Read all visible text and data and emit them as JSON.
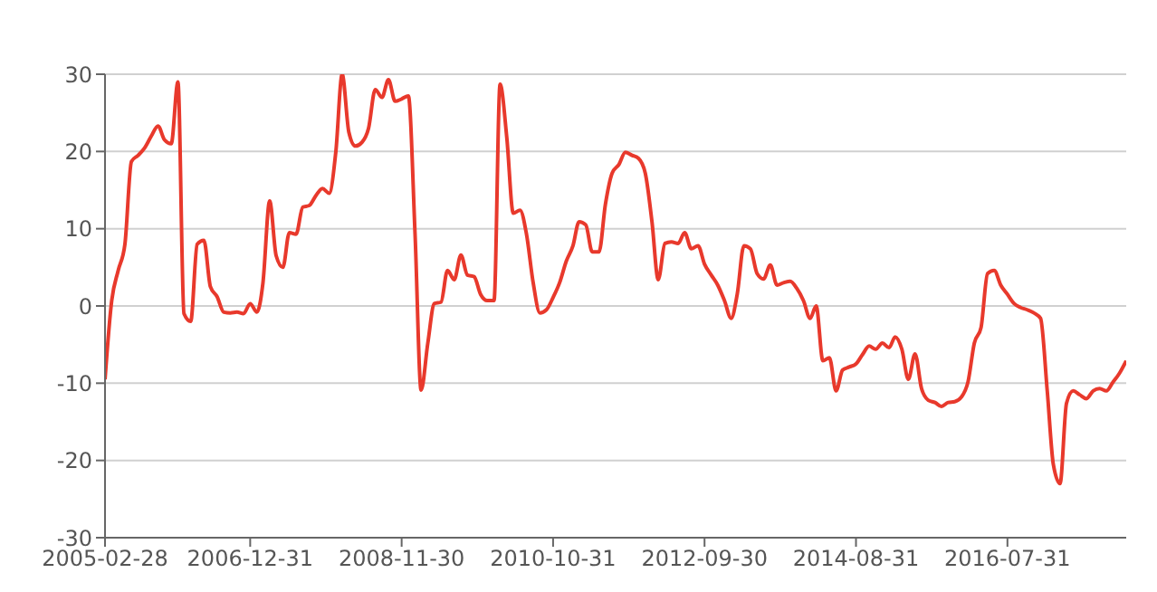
{
  "chart_data": {
    "type": "line",
    "x": [
      "2005-02-28",
      "2005-03-31",
      "2005-04-30",
      "2005-05-31",
      "2005-06-30",
      "2005-07-31",
      "2005-08-31",
      "2005-09-30",
      "2005-10-31",
      "2005-11-30",
      "2005-12-31",
      "2006-01-31",
      "2006-02-28",
      "2006-03-31",
      "2006-04-30",
      "2006-05-31",
      "2006-06-30",
      "2006-07-31",
      "2006-08-31",
      "2006-09-30",
      "2006-10-31",
      "2006-11-30",
      "2006-12-31",
      "2007-01-31",
      "2007-02-28",
      "2007-03-31",
      "2007-04-30",
      "2007-05-31",
      "2007-06-30",
      "2007-07-31",
      "2007-08-31",
      "2007-09-30",
      "2007-10-31",
      "2007-11-30",
      "2007-12-31",
      "2008-01-31",
      "2008-02-29",
      "2008-03-31",
      "2008-04-30",
      "2008-05-31",
      "2008-06-30",
      "2008-07-31",
      "2008-08-31",
      "2008-09-30",
      "2008-10-31",
      "2008-11-30",
      "2008-12-31",
      "2009-01-31",
      "2009-02-28",
      "2009-03-31",
      "2009-04-30",
      "2009-05-31",
      "2009-06-30",
      "2009-07-31",
      "2009-08-31",
      "2009-09-30",
      "2009-10-31",
      "2009-11-30",
      "2009-12-31",
      "2010-01-31",
      "2010-02-28",
      "2010-03-31",
      "2010-04-30",
      "2010-05-31",
      "2010-06-30",
      "2010-07-31",
      "2010-08-31",
      "2010-09-30",
      "2010-10-31",
      "2010-11-30",
      "2010-12-31",
      "2011-01-31",
      "2011-02-28",
      "2011-03-31",
      "2011-04-30",
      "2011-05-31",
      "2011-06-30",
      "2011-07-31",
      "2011-08-31",
      "2011-09-30",
      "2011-10-31",
      "2011-11-30",
      "2011-12-31",
      "2012-01-31",
      "2012-02-29",
      "2012-03-31",
      "2012-04-30",
      "2012-05-31",
      "2012-06-30",
      "2012-07-31",
      "2012-08-31",
      "2012-09-30",
      "2012-10-31",
      "2012-11-30",
      "2012-12-31",
      "2013-01-31",
      "2013-02-28",
      "2013-03-31",
      "2013-04-30",
      "2013-05-31",
      "2013-06-30",
      "2013-07-31",
      "2013-08-31",
      "2013-09-30",
      "2013-10-31",
      "2013-11-30",
      "2013-12-31",
      "2014-01-31",
      "2014-02-28",
      "2014-03-31",
      "2014-04-30",
      "2014-05-31",
      "2014-06-30",
      "2014-07-31",
      "2014-08-31",
      "2014-09-30",
      "2014-10-31",
      "2014-11-30",
      "2014-12-31",
      "2015-01-31",
      "2015-02-28",
      "2015-03-31",
      "2015-04-30",
      "2015-05-31",
      "2015-06-30",
      "2015-07-31",
      "2015-08-31",
      "2015-09-30",
      "2015-10-31",
      "2015-11-30",
      "2015-12-31",
      "2016-01-31",
      "2016-02-29",
      "2016-03-31",
      "2016-04-30",
      "2016-05-31",
      "2016-06-30",
      "2016-07-31",
      "2016-08-31",
      "2016-09-30",
      "2016-10-31",
      "2016-11-30",
      "2016-12-31",
      "2017-01-31",
      "2017-02-28",
      "2017-03-31",
      "2017-04-30",
      "2017-05-31",
      "2017-06-30",
      "2017-07-31",
      "2017-08-31",
      "2017-09-30",
      "2017-10-31",
      "2017-11-30",
      "2017-12-31",
      "2018-01-31"
    ],
    "series": [
      {
        "color": "#e8392c",
        "values": [
          -9.5,
          0.7,
          4.6,
          8,
          18.7,
          19.5,
          20.5,
          22,
          23.3,
          21.5,
          21,
          29,
          -1,
          -2,
          8,
          8.5,
          2.5,
          1.2,
          -0.8,
          -0.9,
          -0.8,
          -1,
          0.3,
          -0.8,
          3,
          13.6,
          6.5,
          5,
          9.5,
          9.3,
          12.8,
          13,
          14.3,
          15.2,
          14.6,
          20,
          30,
          22.5,
          20.7,
          21.2,
          23,
          28,
          27,
          29.3,
          26.5,
          26.8,
          27.2,
          9.3,
          -10.9,
          -4.8,
          0.3,
          0.5,
          4.6,
          3.4,
          6.6,
          4,
          3.8,
          1.5,
          0.7,
          0.7,
          28.7,
          21.8,
          12,
          12.4,
          9.3,
          3,
          -0.9,
          -0.5,
          1.1,
          3,
          5.8,
          7.8,
          10.9,
          10.5,
          7,
          7,
          13.2,
          17.2,
          18.3,
          19.9,
          19.5,
          19.1,
          17.2,
          10.9,
          3.4,
          8.1,
          8.3,
          8.1,
          9.5,
          7.4,
          7.8,
          5.4,
          4,
          2.7,
          0.7,
          -1.6,
          1.5,
          7.8,
          7.4,
          4.2,
          3.5,
          5.3,
          2.7,
          3,
          3.2,
          2.3,
          0.7,
          -1.6,
          0,
          -7.1,
          -6.7,
          -11,
          -8.3,
          -7.9,
          -7.5,
          -6.3,
          -5.2,
          -5.6,
          -4.8,
          -5.4,
          -4,
          -5.6,
          -9.5,
          -6.2,
          -10.7,
          -12.2,
          -12.5,
          -13,
          -12.5,
          -12.4,
          -11.8,
          -9.8,
          -4.8,
          -2.8,
          4.2,
          4.6,
          2.7,
          1.5,
          0.3,
          -0.2,
          -0.5,
          -0.9,
          -1.6,
          -11,
          -20.5,
          -23,
          -12.6,
          -11,
          -11.5,
          -12,
          -11,
          -10.7,
          -11,
          -9.9,
          -8.7,
          -7.1
        ]
      }
    ],
    "xlim": [
      "2005-02-28",
      "2018-01-31"
    ],
    "xticks": [
      "2005-02-28",
      "2006-12-31",
      "2008-11-30",
      "2010-10-31",
      "2012-09-30",
      "2014-08-31",
      "2016-07-31"
    ],
    "ylim": [
      -30,
      30
    ],
    "yticks": [
      -30,
      -20,
      -10,
      0,
      10,
      20,
      30
    ],
    "grid": "y",
    "line_style": "solid"
  }
}
